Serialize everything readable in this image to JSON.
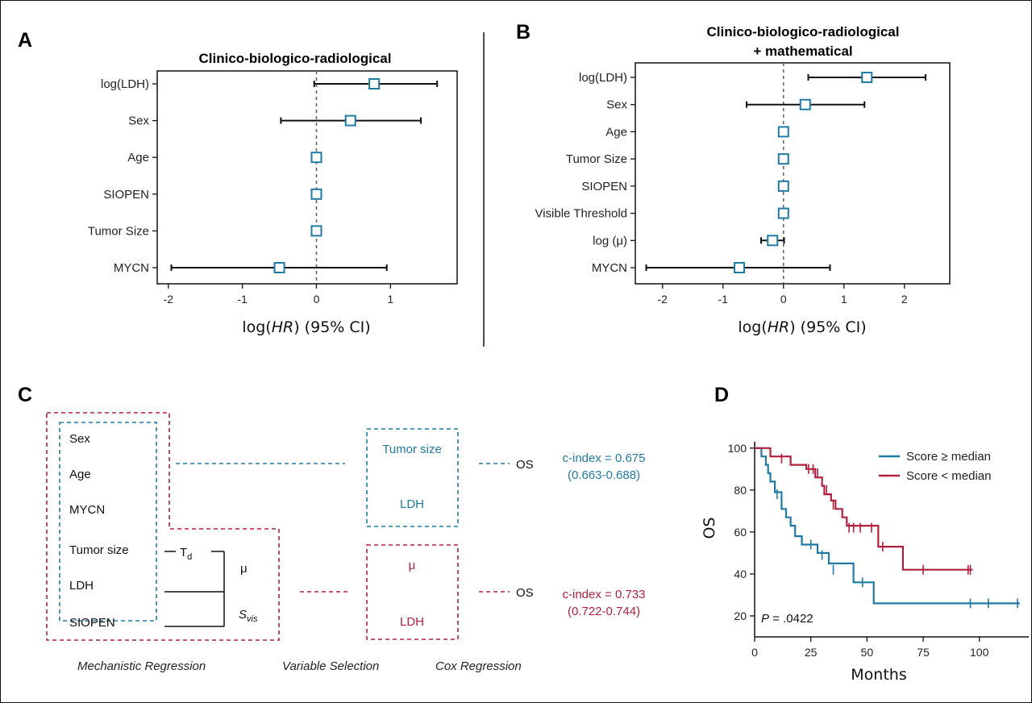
{
  "panels": {
    "a": "A",
    "b": "B",
    "c": "C",
    "d": "D"
  },
  "colors": {
    "blue": "#1f7ba3",
    "red": "#b0203c",
    "black": "#111111"
  },
  "chart_data": [
    {
      "panel": "A",
      "type": "scatter",
      "title": "Clinico-biologico-radiological",
      "xlabel": "log(HR) (95% CI)",
      "xlabel_parts": [
        "log(",
        "HR",
        ") (95% CI)"
      ],
      "xlim": [
        -2.15,
        1.9
      ],
      "xticks": [
        -2,
        -1,
        0,
        1
      ],
      "reference_line": 0,
      "categories": [
        "log(LDH)",
        "Sex",
        "Age",
        "SIOPEN",
        "Tumor Size",
        "MYCN"
      ],
      "estimate": [
        0.78,
        0.46,
        0.0,
        0.0,
        0.0,
        -0.5
      ],
      "ci_low": [
        -0.03,
        -0.48,
        0.0,
        0.0,
        0.0,
        -1.96
      ],
      "ci_high": [
        1.63,
        1.41,
        0.0,
        0.0,
        0.0,
        0.95
      ]
    },
    {
      "panel": "B",
      "type": "scatter",
      "title": "Clinico-biologico-radiological",
      "title_line2": "+ mathematical",
      "xlabel": "log(HR) (95% CI)",
      "xlabel_parts": [
        "log(",
        "HR",
        ") (95% CI)"
      ],
      "xlim": [
        -2.45,
        2.75
      ],
      "xticks": [
        -2,
        -1,
        0,
        1,
        2
      ],
      "reference_line": 0,
      "categories": [
        "log(LDH)",
        "Sex",
        "Age",
        "Tumor Size",
        "SIOPEN",
        "Visible Threshold",
        "log (μ)",
        "MYCN"
      ],
      "estimate": [
        1.38,
        0.36,
        0.0,
        0.0,
        0.0,
        0.0,
        -0.18,
        -0.73
      ],
      "ci_low": [
        0.41,
        -0.61,
        0.0,
        0.0,
        0.0,
        0.0,
        -0.37,
        -2.27
      ],
      "ci_high": [
        2.35,
        1.34,
        0.0,
        0.0,
        0.0,
        0.0,
        0.01,
        0.77
      ]
    },
    {
      "panel": "D",
      "type": "line",
      "title": "",
      "xlabel": "Months",
      "ylabel": "OS",
      "xlim": [
        0,
        122
      ],
      "ylim": [
        10,
        103
      ],
      "xticks": [
        0,
        25,
        50,
        75,
        100
      ],
      "yticks": [
        20,
        40,
        60,
        80,
        100
      ],
      "annotation": {
        "label": "P",
        "value": " = .0422"
      },
      "series": [
        {
          "name": "Score ≥ median",
          "color": "#1f7ba3",
          "steps": [
            [
              0,
              100
            ],
            [
              3,
              100
            ],
            [
              3,
              96
            ],
            [
              5,
              96
            ],
            [
              5,
              92
            ],
            [
              6,
              92
            ],
            [
              6,
              88
            ],
            [
              7,
              88
            ],
            [
              7,
              84
            ],
            [
              9,
              84
            ],
            [
              9,
              79
            ],
            [
              12,
              79
            ],
            [
              12,
              71
            ],
            [
              14,
              71
            ],
            [
              14,
              67
            ],
            [
              16,
              67
            ],
            [
              16,
              63
            ],
            [
              18,
              63
            ],
            [
              18,
              58
            ],
            [
              21,
              58
            ],
            [
              21,
              54
            ],
            [
              28,
              54
            ],
            [
              28,
              50
            ],
            [
              33,
              50
            ],
            [
              33,
              45
            ],
            [
              44,
              45
            ],
            [
              44,
              36
            ],
            [
              53,
              36
            ],
            [
              53,
              26
            ],
            [
              118,
              26
            ]
          ],
          "censored": [
            [
              10,
              78
            ],
            [
              12,
              74
            ],
            [
              25,
              54
            ],
            [
              30,
              49
            ],
            [
              35,
              42
            ],
            [
              48,
              36
            ],
            [
              96,
              26
            ],
            [
              104,
              26
            ],
            [
              117,
              26
            ]
          ]
        },
        {
          "name": "Score < median",
          "color": "#b0203c",
          "steps": [
            [
              0,
              100
            ],
            [
              7,
              100
            ],
            [
              7,
              96
            ],
            [
              16,
              96
            ],
            [
              16,
              92
            ],
            [
              23,
              92
            ],
            [
              23,
              90
            ],
            [
              27,
              90
            ],
            [
              27,
              86
            ],
            [
              30,
              86
            ],
            [
              30,
              82
            ],
            [
              31,
              82
            ],
            [
              31,
              78
            ],
            [
              34,
              78
            ],
            [
              34,
              75
            ],
            [
              36,
              75
            ],
            [
              36,
              71
            ],
            [
              39,
              71
            ],
            [
              39,
              67
            ],
            [
              41,
              67
            ],
            [
              41,
              63
            ],
            [
              55,
              63
            ],
            [
              55,
              53
            ],
            [
              66,
              53
            ],
            [
              66,
              42
            ],
            [
              97,
              42
            ]
          ],
          "censored": [
            [
              12,
              95
            ],
            [
              24,
              90
            ],
            [
              26,
              90
            ],
            [
              28,
              88
            ],
            [
              32,
              80
            ],
            [
              35,
              73
            ],
            [
              42,
              62
            ],
            [
              44,
              62
            ],
            [
              47,
              62
            ],
            [
              52,
              62
            ],
            [
              57,
              53
            ],
            [
              75,
              42
            ],
            [
              95,
              42
            ],
            [
              96,
              42
            ]
          ]
        }
      ]
    }
  ],
  "diagram": {
    "variables": [
      "Sex",
      "Age",
      "MYCN",
      "Tumor size",
      "LDH",
      "SIOPEN"
    ],
    "td_main": "T",
    "td_sub": "d",
    "mu": "μ",
    "svis_main": "S",
    "svis_sub": "vis",
    "blue_selected": [
      "Tumor size",
      "LDH"
    ],
    "red_selected": [
      "μ",
      "LDH"
    ],
    "os_label": "OS",
    "blue_cindex": "c-index = 0.675",
    "blue_ci": "(0.663-0.688)",
    "red_cindex": "c-index = 0.733",
    "red_ci": "(0.722-0.744)",
    "stages": [
      "Mechanistic Regression",
      "Variable Selection",
      "Cox Regression"
    ]
  }
}
